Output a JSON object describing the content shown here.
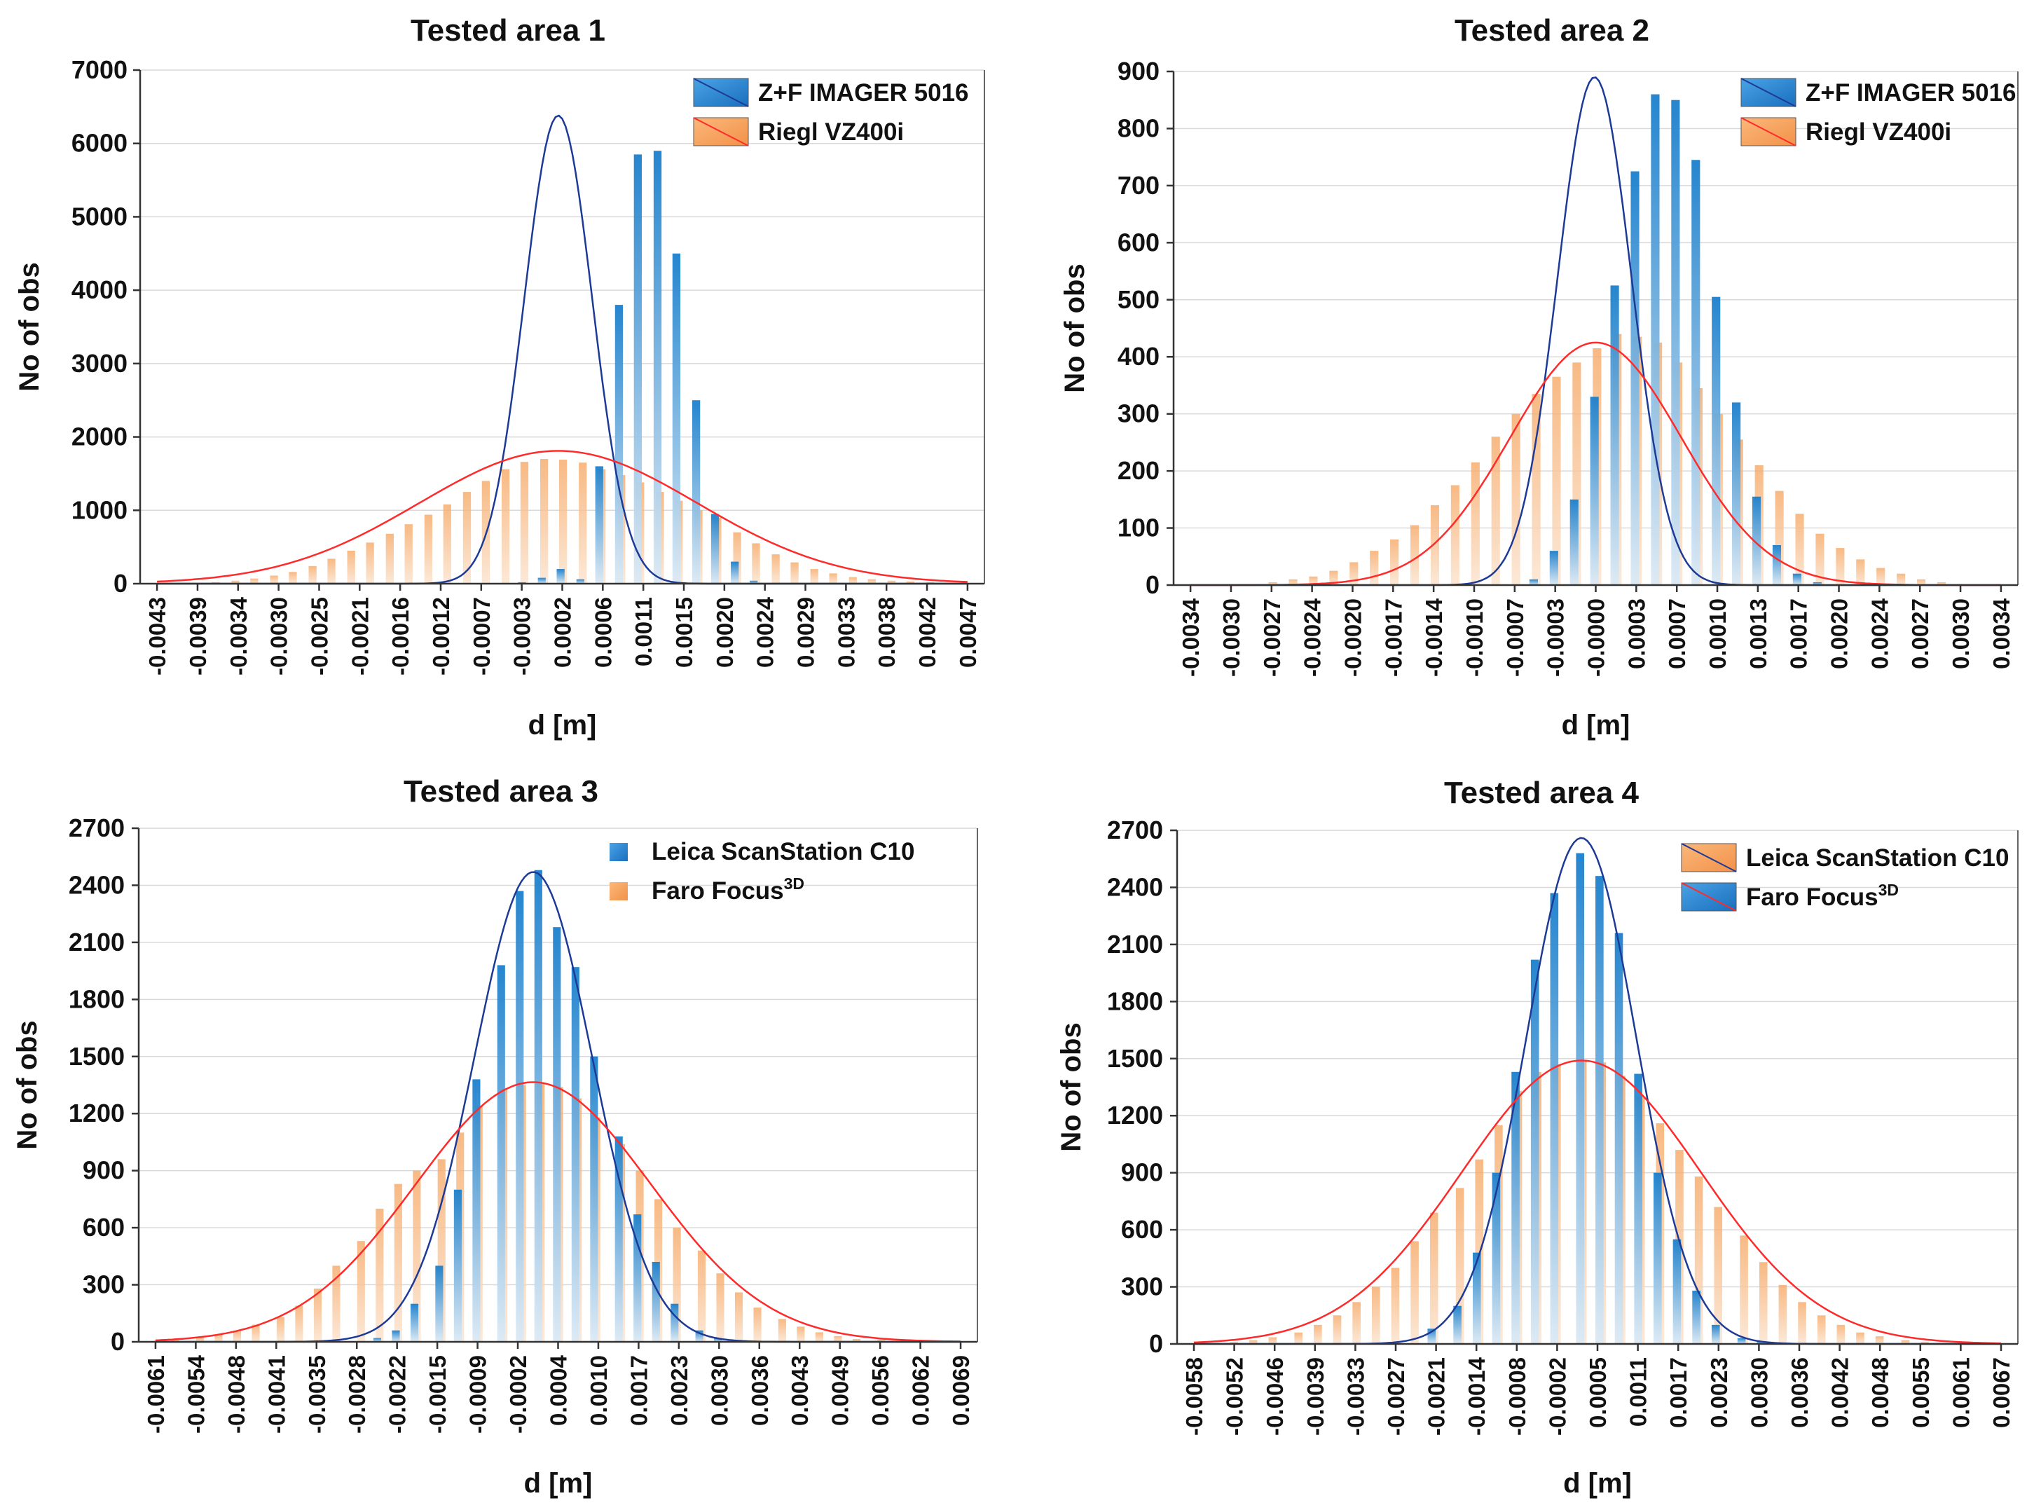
{
  "colors": {
    "blue_bar_top": "#1a7fcc",
    "blue_bar_bottom": "#dceaf5",
    "orange_bar_top": "#f6a865",
    "orange_bar_bottom": "#fbe3ce",
    "blue_curve": "#1c3a96",
    "red_curve": "#ff2a2a",
    "grid": "#d9d9d9",
    "axis": "#333333"
  },
  "chart_data": [
    {
      "type": "bar",
      "title": "Tested area 1",
      "xlabel": "d [m]",
      "ylabel": "No of obs",
      "ylim": [
        0,
        7000
      ],
      "yticks": [
        "0",
        "1000",
        "2000",
        "3000",
        "4000",
        "5000",
        "6000",
        "7000"
      ],
      "xticks": [
        "-0.0043",
        "-0.0039",
        "-0.0034",
        "-0.0030",
        "-0.0025",
        "-0.0021",
        "-0.0016",
        "-0.0012",
        "-0.0007",
        "-0.0003",
        "0.0002",
        "0.0006",
        "0.0011",
        "0.0015",
        "0.0020",
        "0.0024",
        "0.0029",
        "0.0033",
        "0.0038",
        "0.0042",
        "0.0047"
      ],
      "bar_x": [
        -0.00432,
        -0.00411,
        -0.00389,
        -0.00368,
        -0.00346,
        -0.00325,
        -0.00303,
        -0.00282,
        -0.0026,
        -0.00239,
        -0.00217,
        -0.00196,
        -0.00174,
        -0.00153,
        -0.00131,
        -0.0011,
        -0.00088,
        -0.00067,
        -0.00045,
        -0.00024,
        -2e-05,
        0.00019,
        0.00041,
        0.00062,
        0.00084,
        0.00105,
        0.00127,
        0.00148,
        0.0017,
        0.00191,
        0.00213,
        0.00234,
        0.00256,
        0.00277,
        0.00299,
        0.0032,
        0.00342,
        0.00363,
        0.00385,
        0.00406,
        0.00428,
        0.00449,
        0.00471
      ],
      "series": [
        {
          "name": "Z+F IMAGER 5016",
          "color": "blue",
          "values": [
            0,
            0,
            0,
            0,
            0,
            0,
            0,
            0,
            0,
            0,
            0,
            0,
            0,
            0,
            0,
            0,
            0,
            5,
            0,
            20,
            80,
            200,
            60,
            1600,
            3800,
            5850,
            5900,
            4500,
            2500,
            950,
            300,
            40,
            0,
            0,
            0,
            0,
            0,
            0,
            0,
            0,
            0,
            0,
            0
          ],
          "mean": 0.00015,
          "sd": 0.00038,
          "peak": 6380
        },
        {
          "name": "Riegl VZ400i",
          "color": "orange",
          "values": [
            5,
            5,
            10,
            20,
            40,
            70,
            110,
            160,
            240,
            340,
            450,
            560,
            680,
            810,
            940,
            1080,
            1250,
            1400,
            1560,
            1660,
            1700,
            1690,
            1650,
            1560,
            1480,
            1380,
            1250,
            1130,
            1000,
            900,
            700,
            550,
            400,
            290,
            200,
            140,
            90,
            60,
            40,
            30,
            20,
            10,
            5
          ],
          "mean": 0.00015,
          "sd": 0.00155,
          "peak": 1810
        }
      ],
      "legend": {
        "position": "top-right",
        "style": "box"
      }
    },
    {
      "type": "bar",
      "title": "Tested area 2",
      "xlabel": "d [m]",
      "ylabel": "No of obs",
      "ylim": [
        0,
        900
      ],
      "yticks": [
        "0",
        "100",
        "200",
        "300",
        "400",
        "500",
        "600",
        "700",
        "800",
        "900"
      ],
      "xticks": [
        "-0.0034",
        "-0.0030",
        "-0.0027",
        "-0.0024",
        "-0.0020",
        "-0.0017",
        "-0.0014",
        "-0.0010",
        "-0.0007",
        "-0.0003",
        "-0.0000",
        "0.0003",
        "0.0007",
        "0.0010",
        "0.0013",
        "0.0017",
        "0.0020",
        "0.0024",
        "0.0027",
        "0.0030",
        "0.0034"
      ],
      "bar_x": [
        -0.0034,
        -0.00323,
        -0.00306,
        -0.00289,
        -0.00272,
        -0.00255,
        -0.00238,
        -0.00221,
        -0.00204,
        -0.00187,
        -0.0017,
        -0.00153,
        -0.00136,
        -0.00119,
        -0.00102,
        -0.00085,
        -0.00068,
        -0.00051,
        -0.00034,
        -0.00017,
        0,
        0.00017,
        0.00034,
        0.00051,
        0.00068,
        0.00085,
        0.00102,
        0.00119,
        0.00136,
        0.00153,
        0.0017,
        0.00187,
        0.00204,
        0.00221,
        0.00238,
        0.00255,
        0.00272,
        0.00289,
        0.00306,
        0.00323,
        0.0034
      ],
      "series": [
        {
          "name": "Z+F IMAGER 5016",
          "color": "blue",
          "values": [
            0,
            0,
            0,
            0,
            0,
            0,
            0,
            0,
            0,
            0,
            0,
            0,
            0,
            0,
            0,
            0,
            0,
            10,
            60,
            150,
            330,
            525,
            725,
            860,
            850,
            745,
            505,
            320,
            155,
            70,
            20,
            5,
            0,
            0,
            0,
            0,
            0,
            0,
            0,
            0,
            0
          ],
          "mean": -1e-05,
          "sd": 0.00031,
          "peak": 890
        },
        {
          "name": "Riegl VZ400i",
          "color": "orange",
          "values": [
            0,
            0,
            0,
            0,
            5,
            10,
            15,
            25,
            40,
            60,
            80,
            105,
            140,
            175,
            215,
            260,
            300,
            335,
            365,
            390,
            415,
            440,
            435,
            425,
            390,
            345,
            300,
            255,
            210,
            165,
            125,
            90,
            65,
            45,
            30,
            20,
            10,
            5,
            0,
            0,
            0
          ],
          "mean": 0.0,
          "sd": 0.00072,
          "peak": 425
        }
      ],
      "legend": {
        "position": "top-right",
        "style": "box"
      }
    },
    {
      "type": "bar",
      "title": "Tested area 3",
      "xlabel": "d [m]",
      "ylabel": "No of obs",
      "ylim": [
        0,
        2700
      ],
      "yticks": [
        "0",
        "300",
        "600",
        "900",
        "1200",
        "1500",
        "1800",
        "2100",
        "2400",
        "2700"
      ],
      "xticks": [
        "-0.0061",
        "-0.0054",
        "-0.0048",
        "-0.0041",
        "-0.0035",
        "-0.0028",
        "-0.0022",
        "-0.0015",
        "-0.0009",
        "-0.0002",
        "0.0004",
        "0.0010",
        "0.0017",
        "0.0023",
        "0.0030",
        "0.0036",
        "0.0043",
        "0.0049",
        "0.0056",
        "0.0062",
        "0.0069"
      ],
      "bar_x": [
        -0.0061,
        -0.0058,
        -0.0054,
        -0.0051,
        -0.0048,
        -0.0045,
        -0.0041,
        -0.0038,
        -0.0035,
        -0.0032,
        -0.0028,
        -0.0025,
        -0.0022,
        -0.0019,
        -0.0015,
        -0.0012,
        -0.0009,
        -0.0005,
        -0.0002,
        0.0001,
        0.0004,
        0.0007,
        0.001,
        0.0014,
        0.0017,
        0.002,
        0.0023,
        0.0027,
        0.003,
        0.0033,
        0.0036,
        0.004,
        0.0043,
        0.0046,
        0.0049,
        0.0052,
        0.0056,
        0.0059,
        0.0062,
        0.0066,
        0.0069
      ],
      "series": [
        {
          "name": "Leica ScanStation C10",
          "color": "blue",
          "values": [
            0,
            0,
            0,
            0,
            0,
            0,
            0,
            0,
            0,
            0,
            0,
            20,
            60,
            200,
            400,
            800,
            1380,
            1980,
            2370,
            2480,
            2180,
            1970,
            1500,
            1080,
            670,
            420,
            200,
            60,
            20,
            0,
            0,
            0,
            0,
            0,
            0,
            0,
            0,
            0,
            0,
            0,
            0
          ],
          "mean": 0.0,
          "sd": 0.00095,
          "peak": 2470
        },
        {
          "name": "Faro Focus",
          "superscript": "3D",
          "color": "orange",
          "values": [
            5,
            10,
            20,
            40,
            60,
            90,
            130,
            190,
            280,
            400,
            530,
            700,
            830,
            900,
            960,
            1100,
            1240,
            1330,
            1350,
            1360,
            1340,
            1280,
            1180,
            1040,
            900,
            750,
            600,
            480,
            360,
            260,
            180,
            120,
            80,
            50,
            30,
            15,
            10,
            5,
            0,
            0,
            0
          ],
          "mean": 0.0,
          "sd": 0.0019,
          "peak": 1365
        }
      ],
      "legend": {
        "position": "top-right",
        "style": "marker"
      }
    },
    {
      "type": "bar",
      "title": "Tested area 4",
      "xlabel": "d [m]",
      "ylabel": "No of obs",
      "ylim": [
        0,
        2700
      ],
      "yticks": [
        "0",
        "300",
        "600",
        "900",
        "1200",
        "1500",
        "1800",
        "2100",
        "2400",
        "2700"
      ],
      "xticks": [
        "-0.0058",
        "-0.0052",
        "-0.0046",
        "-0.0039",
        "-0.0033",
        "-0.0027",
        "-0.0021",
        "-0.0014",
        "-0.0008",
        "-0.0002",
        "0.0005",
        "0.0011",
        "0.0017",
        "0.0023",
        "0.0030",
        "0.0036",
        "0.0042",
        "0.0048",
        "0.0055",
        "0.0061",
        "0.0067"
      ],
      "bar_x": [
        -0.0058,
        -0.0055,
        -0.0052,
        -0.0049,
        -0.0046,
        -0.0042,
        -0.0039,
        -0.0036,
        -0.0033,
        -0.003,
        -0.0027,
        -0.0024,
        -0.0021,
        -0.0017,
        -0.0014,
        -0.0011,
        -0.0008,
        -0.0005,
        -0.0002,
        0.0002,
        0.0005,
        0.0008,
        0.0011,
        0.0014,
        0.0017,
        0.002,
        0.0023,
        0.0027,
        0.003,
        0.0033,
        0.0036,
        0.0039,
        0.0042,
        0.0045,
        0.0048,
        0.0052,
        0.0055,
        0.0058,
        0.0061,
        0.0064,
        0.0067
      ],
      "series": [
        {
          "name": "Faro Focus",
          "superscript": "3D",
          "color": "blue",
          "values": [
            0,
            0,
            0,
            0,
            0,
            0,
            0,
            0,
            0,
            0,
            0,
            0,
            80,
            200,
            480,
            900,
            1430,
            2020,
            2370,
            2580,
            2460,
            2160,
            1420,
            900,
            550,
            280,
            100,
            30,
            10,
            0,
            0,
            0,
            0,
            0,
            0,
            0,
            0,
            0,
            0,
            0,
            0
          ],
          "mean": 0.0002,
          "sd": 0.00085,
          "peak": 2660
        },
        {
          "name": "Leica ScanStation C10",
          "color": "orange",
          "values": [
            0,
            5,
            10,
            20,
            35,
            60,
            100,
            150,
            220,
            300,
            400,
            540,
            690,
            820,
            970,
            1150,
            1330,
            1430,
            1470,
            1490,
            1480,
            1410,
            1300,
            1160,
            1020,
            880,
            720,
            570,
            430,
            310,
            220,
            150,
            100,
            60,
            40,
            20,
            10,
            5,
            0,
            0,
            0
          ],
          "mean": 0.0002,
          "sd": 0.00185,
          "peak": 1490
        }
      ],
      "legend": {
        "position": "top-right",
        "style": "box",
        "order": [
          "Leica ScanStation C10",
          "Faro Focus"
        ]
      }
    }
  ]
}
